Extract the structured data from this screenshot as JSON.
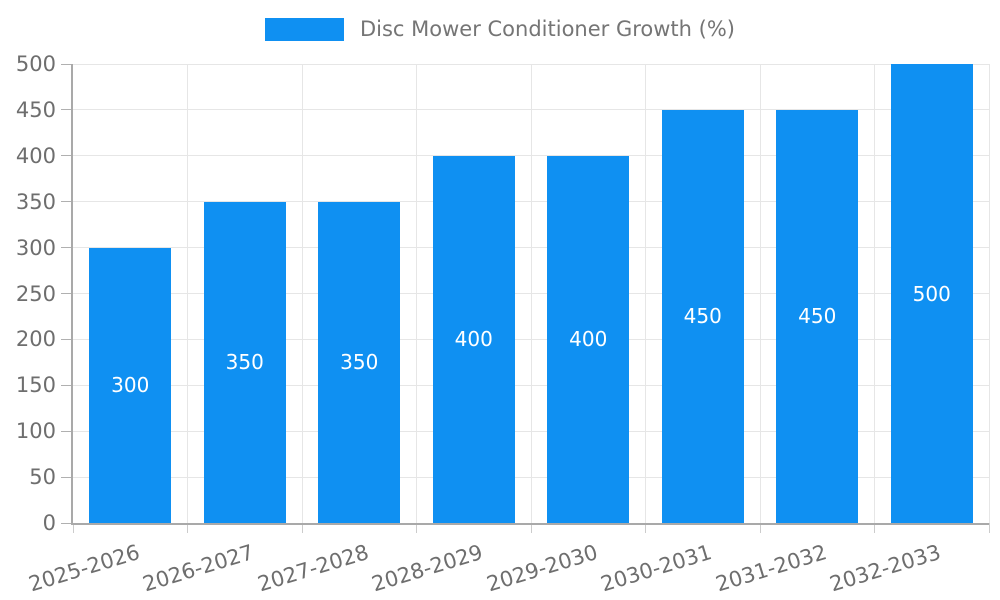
{
  "chart_data": {
    "type": "bar",
    "title": "Disc Mower Conditioner Growth (%)",
    "categories": [
      "2025-2026",
      "2026-2027",
      "2027-2028",
      "2028-2029",
      "2029-2030",
      "2030-2031",
      "2031-2032",
      "2032-2033"
    ],
    "values": [
      300,
      350,
      350,
      400,
      400,
      450,
      450,
      500
    ],
    "xlabel": "",
    "ylabel": "",
    "ylim": [
      0,
      500
    ],
    "yticks": [
      0,
      50,
      100,
      150,
      200,
      250,
      300,
      350,
      400,
      450,
      500
    ],
    "grid": true,
    "legend_position": "top",
    "bar_color": "#0f90f2",
    "bar_label_color": "#ffffff",
    "axis_text_color": "#6e6e6e",
    "legend_text_color": "#757575",
    "grid_color": "#e6e6e6",
    "axis_line_color": "#a9a9a9",
    "y_tick_color": "#b0b0b0",
    "x_tick_color": "#cccccc"
  }
}
